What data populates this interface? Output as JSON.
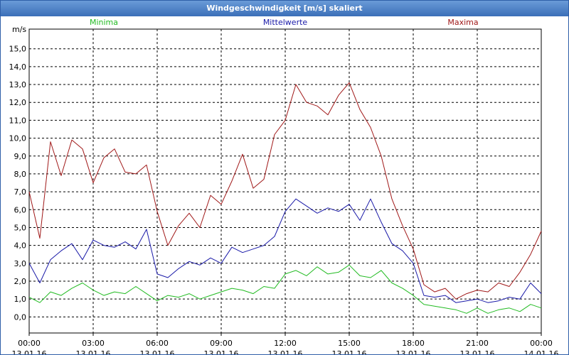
{
  "window": {
    "title": "Windgeschwindigkeit [m/s] skaliert"
  },
  "colors": {
    "minima": "#22bb22",
    "mittelwerte": "#1a1aa8",
    "maxima": "#a01818",
    "grid": "#000000",
    "titlebar": "#4a7fc4"
  },
  "chart_data": {
    "type": "line",
    "title": "Windgeschwindigkeit [m/s] skaliert",
    "ylabel": "m/s",
    "xlabel": "",
    "ylim": [
      -0.9,
      16.1
    ],
    "xlim_hours": [
      0,
      24
    ],
    "grid": true,
    "legend_placement": "top",
    "x_ticks": [
      {
        "time": "00:00",
        "date": "13.01.16"
      },
      {
        "time": "03:00",
        "date": "13.01.16"
      },
      {
        "time": "06:00",
        "date": "13.01.16"
      },
      {
        "time": "09:00",
        "date": "13.01.16"
      },
      {
        "time": "12:00",
        "date": "13.01.16"
      },
      {
        "time": "15:00",
        "date": "13.01.16"
      },
      {
        "time": "18:00",
        "date": "13.01.16"
      },
      {
        "time": "21:00",
        "date": "13.01.16"
      },
      {
        "time": "00:00",
        "date": "14.01.16"
      }
    ],
    "y_ticks": [
      "0,0",
      "1,0",
      "2,0",
      "3,0",
      "4,0",
      "5,0",
      "6,0",
      "7,0",
      "8,0",
      "9,0",
      "10,0",
      "11,0",
      "12,0",
      "13,0",
      "14,0",
      "15,0"
    ],
    "x_hours": [
      0,
      0.5,
      1,
      1.5,
      2,
      2.5,
      3,
      3.5,
      4,
      4.5,
      5,
      5.5,
      6,
      6.5,
      7,
      7.5,
      8,
      8.5,
      9,
      9.5,
      10,
      10.5,
      11,
      11.5,
      12,
      12.5,
      13,
      13.5,
      14,
      14.5,
      15,
      15.5,
      16,
      16.5,
      17,
      17.5,
      18,
      18.5,
      19,
      19.5,
      20,
      20.5,
      21,
      21.5,
      22,
      22.5,
      23,
      23.5,
      24
    ],
    "series": [
      {
        "name": "Minima",
        "color_key": "minima",
        "values": [
          1.1,
          0.8,
          1.4,
          1.2,
          1.6,
          1.9,
          1.5,
          1.2,
          1.4,
          1.3,
          1.7,
          1.3,
          0.9,
          1.2,
          1.1,
          1.3,
          1.0,
          1.2,
          1.4,
          1.6,
          1.5,
          1.3,
          1.7,
          1.6,
          2.4,
          2.6,
          2.3,
          2.8,
          2.4,
          2.5,
          2.9,
          2.3,
          2.2,
          2.6,
          1.9,
          1.6,
          1.2,
          0.7,
          0.6,
          0.5,
          0.4,
          0.2,
          0.5,
          0.2,
          0.4,
          0.5,
          0.3,
          0.7,
          0.5
        ]
      },
      {
        "name": "Mittelwerte",
        "color_key": "mittelwerte",
        "values": [
          3.0,
          1.9,
          3.2,
          3.7,
          4.1,
          3.2,
          4.3,
          4.0,
          3.9,
          4.2,
          3.8,
          4.9,
          2.4,
          2.2,
          2.7,
          3.1,
          2.9,
          3.3,
          3.0,
          3.9,
          3.6,
          3.8,
          4.0,
          4.5,
          5.9,
          6.6,
          6.2,
          5.8,
          6.1,
          5.9,
          6.3,
          5.4,
          6.6,
          5.3,
          4.1,
          3.7,
          3.0,
          1.2,
          1.1,
          1.2,
          0.8,
          0.9,
          1.0,
          0.8,
          0.9,
          1.1,
          1.0,
          1.9,
          1.3
        ]
      },
      {
        "name": "Maxima",
        "color_key": "maxima",
        "values": [
          7.0,
          4.4,
          9.8,
          7.9,
          9.9,
          9.4,
          7.5,
          8.9,
          9.4,
          8.1,
          8.0,
          8.5,
          5.9,
          4.0,
          5.1,
          5.8,
          5.0,
          6.8,
          6.3,
          7.6,
          9.1,
          7.2,
          7.7,
          10.2,
          11.0,
          13.0,
          12.0,
          11.8,
          11.3,
          12.4,
          13.1,
          11.6,
          10.6,
          9.0,
          6.6,
          5.1,
          3.8,
          1.8,
          1.4,
          1.6,
          1.0,
          1.3,
          1.5,
          1.4,
          1.9,
          1.7,
          2.5,
          3.5,
          4.8
        ]
      }
    ]
  }
}
